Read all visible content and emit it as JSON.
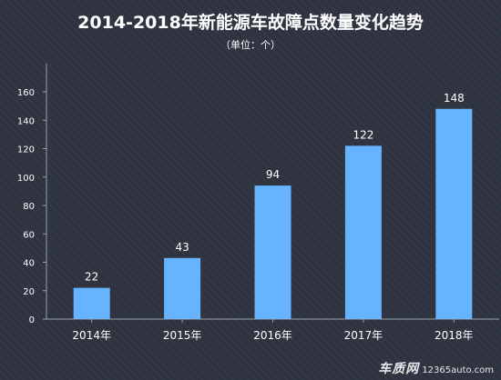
{
  "chart_data": {
    "type": "bar",
    "title": "2014-2018年新能源车故障点数量变化趋势",
    "subtitle": "（单位：个）",
    "categories": [
      "2014年",
      "2015年",
      "2016年",
      "2017年",
      "2018年"
    ],
    "values": [
      22,
      43,
      94,
      122,
      148
    ],
    "ylim": [
      0,
      160
    ],
    "yticks": [
      0,
      20,
      40,
      60,
      80,
      100,
      120,
      140,
      160
    ],
    "grid": false,
    "legend": "none",
    "bar_color": "#66b3ff",
    "text_color": "#ffffff",
    "axis_color": "#9aa0aa"
  },
  "watermark": {
    "brand": "车质网",
    "site": "12365auto.com"
  }
}
